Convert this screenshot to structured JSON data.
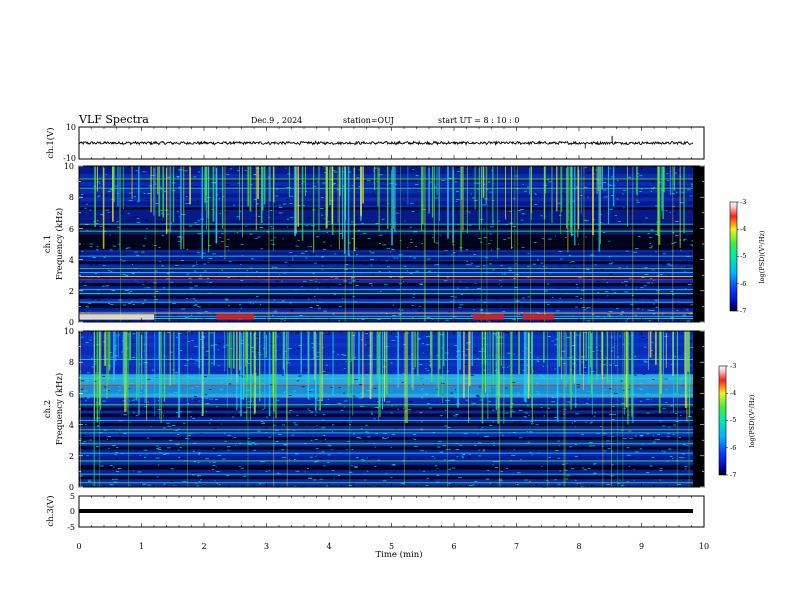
{
  "header": {
    "title": "VLF Spectra",
    "date": "Dec.9 , 2024",
    "station": "station=OUJ",
    "start": "start  UT =  8 : 10 : 0"
  },
  "chart_data": [
    {
      "type": "line",
      "ylabel": "ch.1(V)",
      "ylim": [
        -10,
        10
      ],
      "yticks": [
        "10",
        "-10"
      ],
      "description_level": "flat noisy waveform near 0 V with amplitude about +/-1 V; spike at ~8.53 min, dip at ~8.1 min",
      "x": [
        0,
        10
      ],
      "y_baseline": 0
    },
    {
      "type": "heatmap",
      "ylabel": "ch.1",
      "ylabel2": "Frequency (kHz)",
      "ylim": [
        0,
        10
      ],
      "yticks": [
        "0",
        "2",
        "4",
        "6",
        "8",
        "10"
      ],
      "colorbar": {
        "label": "log(PSD)(V²/Hz)",
        "range": [
          -7,
          -3
        ],
        "ticks": [
          "-3",
          "-4",
          "-5",
          "-6",
          "-7"
        ]
      }
    },
    {
      "type": "heatmap",
      "ylabel": "ch.2",
      "ylabel2": "Frequency (kHz)",
      "ylim": [
        0,
        10
      ],
      "yticks": [
        "0",
        "2",
        "4",
        "6",
        "8",
        "10"
      ],
      "colorbar": {
        "label": "log(PSD)(V²/Hz)",
        "range": [
          -7,
          -3
        ],
        "ticks": [
          "-3",
          "-4",
          "-5",
          "-6",
          "-7"
        ]
      }
    },
    {
      "type": "line",
      "ylabel": "ch.3(V)",
      "ylim": [
        -5,
        5
      ],
      "yticks": [
        "5",
        "0",
        "-5"
      ],
      "x": [
        0,
        10
      ],
      "y_baseline": -1
    }
  ],
  "xaxis": {
    "label": "Time (min)",
    "range": [
      0,
      10
    ],
    "ticks": [
      "0",
      "1",
      "2",
      "3",
      "4",
      "5",
      "6",
      "7",
      "8",
      "9",
      "10"
    ]
  },
  "colors": {
    "background": "#000000",
    "base": "#0a1f9e",
    "cyan": "#19d7f0",
    "green": "#4de83c",
    "yellow": "#f2ee2a",
    "red": "#d81e1e"
  }
}
